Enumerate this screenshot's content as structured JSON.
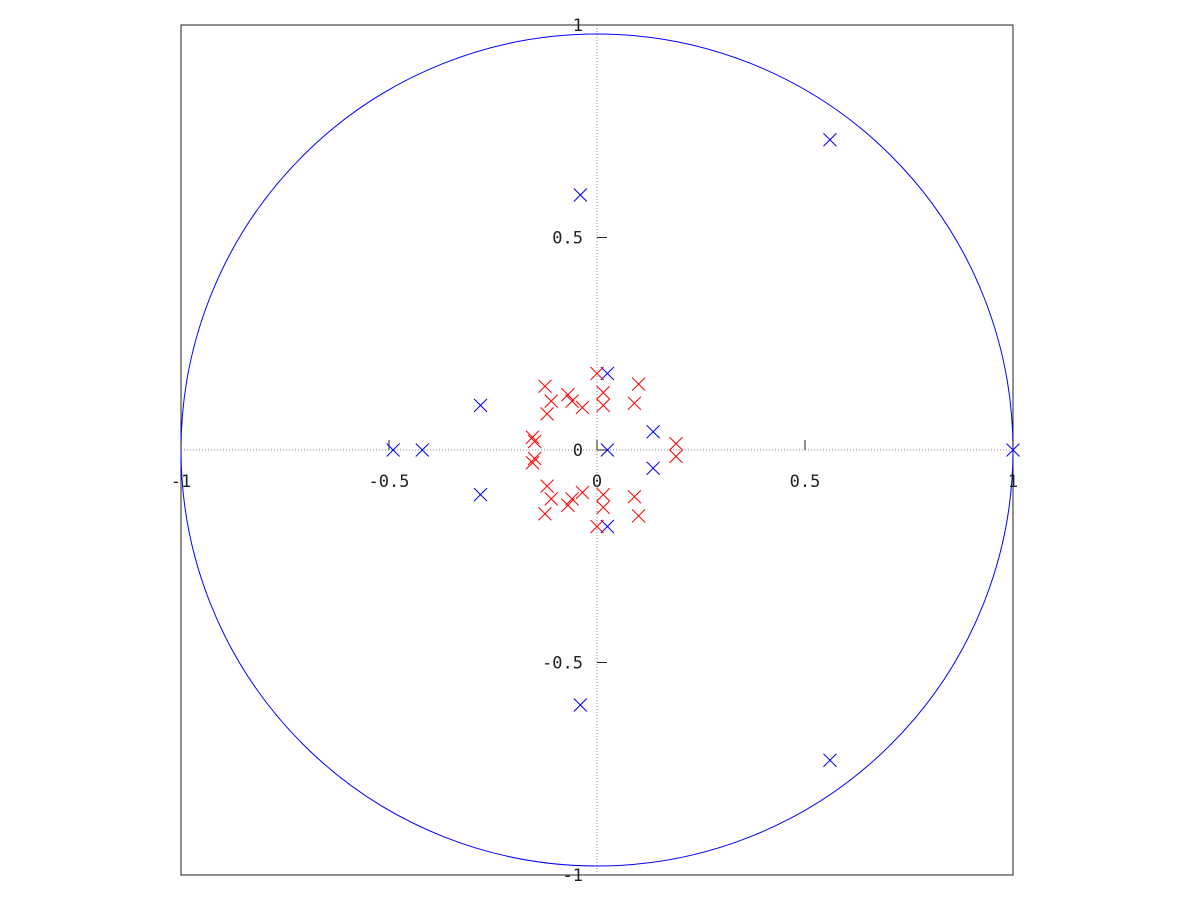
{
  "chart_data": {
    "type": "scatter",
    "title": "",
    "xlabel": "",
    "ylabel": "",
    "xlim": [
      -1,
      1
    ],
    "ylim": [
      -1,
      1
    ],
    "aspect": "equal",
    "grid": false,
    "legend": "none",
    "x_ticks": [
      {
        "value": -1,
        "label": "-1"
      },
      {
        "value": -0.5,
        "label": "-0.5"
      },
      {
        "value": 0,
        "label": "0"
      },
      {
        "value": 0.5,
        "label": "0.5"
      },
      {
        "value": 1,
        "label": "1"
      }
    ],
    "y_ticks": [
      {
        "value": 1,
        "label": "1"
      },
      {
        "value": 0.5,
        "label": "0.5"
      },
      {
        "value": 0,
        "label": "0"
      },
      {
        "value": -0.5,
        "label": "-0.5"
      },
      {
        "value": -1,
        "label": "-1"
      }
    ],
    "unit_circle": {
      "radius": 1,
      "color": "#0000ff"
    },
    "reference_axes": {
      "style": "dotted",
      "color": "#888888"
    },
    "series": [
      {
        "marker": "x",
        "color": "#0000ff",
        "points": [
          [
            0.56,
            0.73
          ],
          [
            0.56,
            -0.73
          ],
          [
            -0.04,
            0.6
          ],
          [
            -0.04,
            -0.6
          ],
          [
            1.0,
            0.0
          ],
          [
            -0.49,
            0.0
          ],
          [
            -0.42,
            0.0
          ],
          [
            -0.28,
            0.105
          ],
          [
            -0.28,
            -0.105
          ],
          [
            0.135,
            0.043
          ],
          [
            0.135,
            -0.043
          ],
          [
            0.025,
            0.18
          ],
          [
            0.025,
            -0.18
          ],
          [
            0.025,
            0.0
          ]
        ]
      },
      {
        "marker": "x",
        "color": "#ff0000",
        "points": [
          [
            -0.125,
            0.15
          ],
          [
            -0.125,
            -0.15
          ],
          [
            -0.07,
            0.13
          ],
          [
            -0.07,
            -0.13
          ],
          [
            0.0,
            0.18
          ],
          [
            0.0,
            -0.18
          ],
          [
            0.1,
            0.155
          ],
          [
            0.1,
            -0.155
          ],
          [
            -0.12,
            0.085
          ],
          [
            -0.12,
            -0.085
          ],
          [
            -0.11,
            0.115
          ],
          [
            -0.11,
            -0.115
          ],
          [
            -0.06,
            0.115
          ],
          [
            -0.06,
            -0.115
          ],
          [
            -0.035,
            0.1
          ],
          [
            -0.035,
            -0.1
          ],
          [
            0.015,
            0.135
          ],
          [
            0.015,
            -0.135
          ],
          [
            0.015,
            0.105
          ],
          [
            0.015,
            -0.105
          ],
          [
            0.09,
            0.11
          ],
          [
            0.09,
            -0.11
          ],
          [
            -0.155,
            0.03
          ],
          [
            -0.155,
            -0.03
          ],
          [
            -0.15,
            0.02
          ],
          [
            -0.15,
            -0.02
          ],
          [
            0.19,
            0.015
          ],
          [
            0.19,
            -0.015
          ]
        ]
      }
    ]
  }
}
